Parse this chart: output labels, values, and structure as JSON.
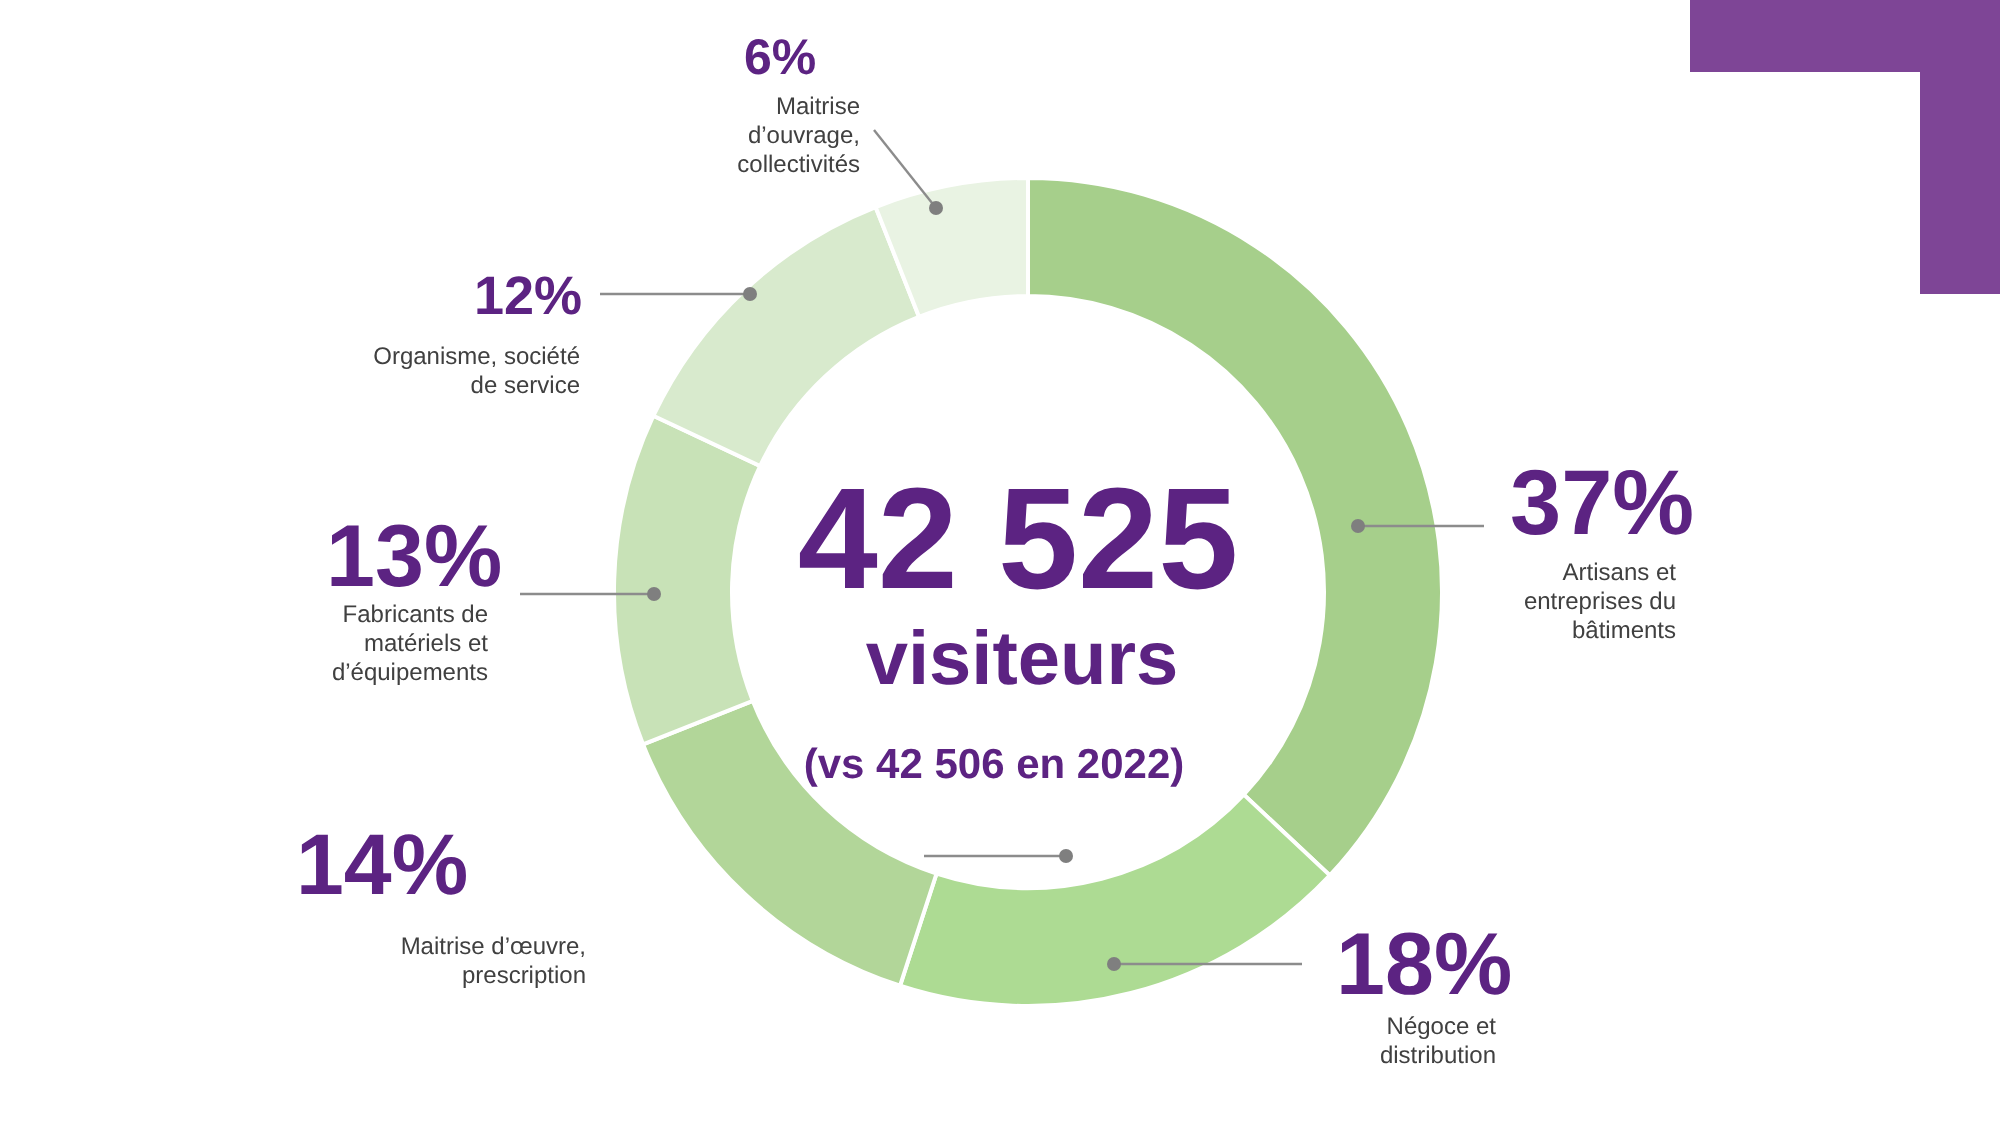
{
  "chart_data": {
    "type": "donut",
    "title": "42 525",
    "subtitle": "visiteurs",
    "annotations": [
      "(vs 42 506 en 2022)"
    ],
    "categories": [
      "Artisans et entreprises du bâtiments",
      "Négoce et distribution",
      "Maitrise d’œuvre, prescription",
      "Fabricants de matériels et d’équipements",
      "Organisme, société de service",
      "Maitrise d’ouvrage, collectivités"
    ],
    "values": [
      37,
      18,
      14,
      13,
      12,
      6
    ],
    "colors": [
      "#a6cf8b",
      "#addb93",
      "#b2d699",
      "#c8e2b7",
      "#d8eacd",
      "#e9f3e3"
    ],
    "value_labels": [
      "37%",
      "18%",
      "14%",
      "13%",
      "12%",
      "6%"
    ]
  }
}
